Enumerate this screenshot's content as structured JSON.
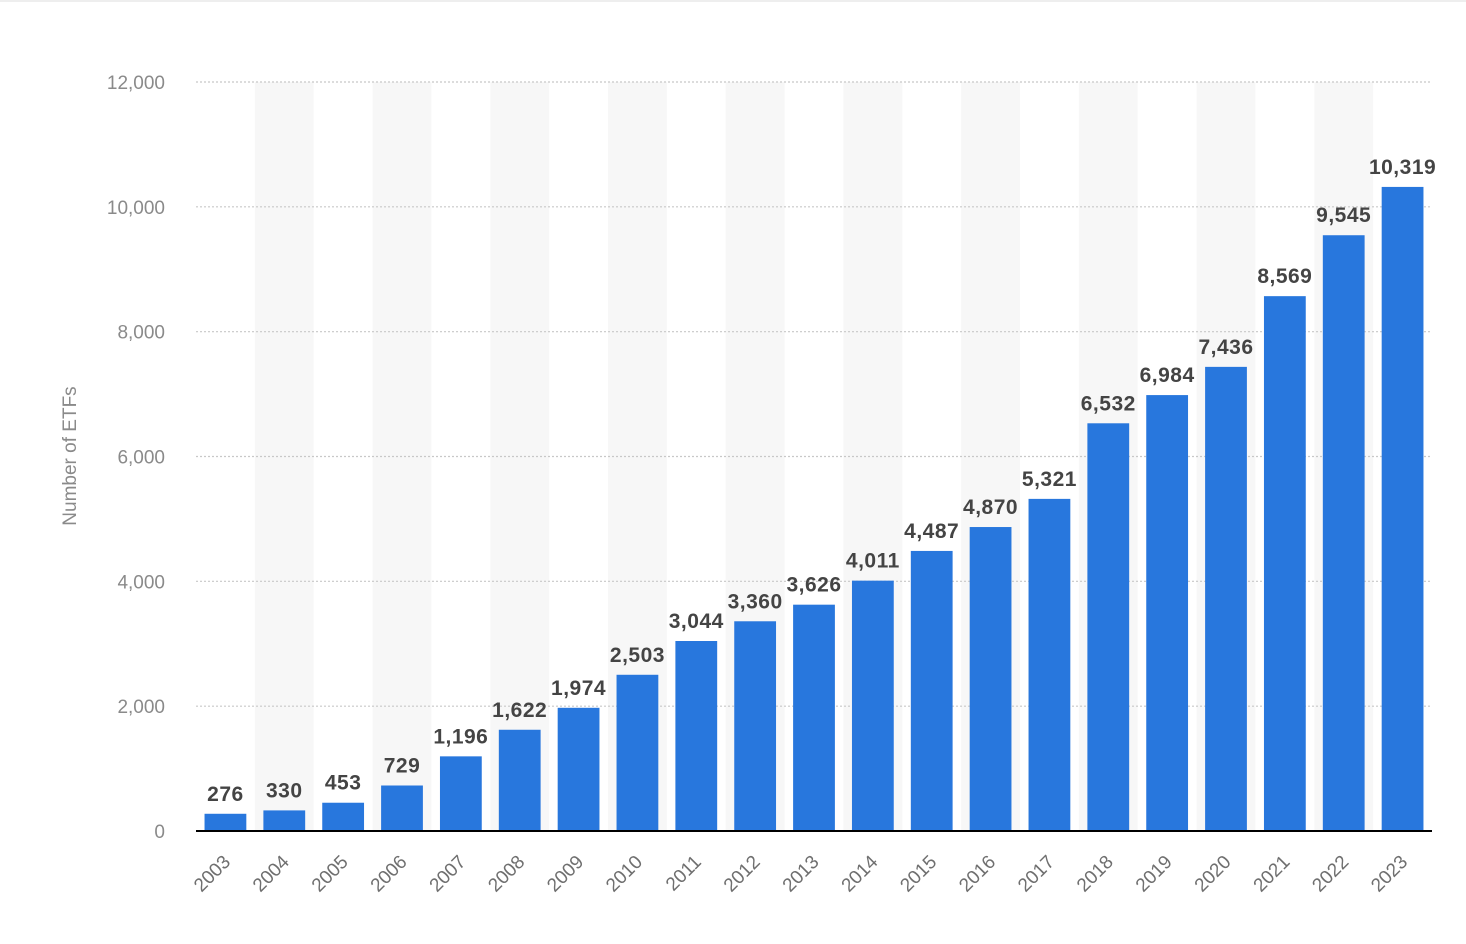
{
  "chart_data": {
    "type": "bar",
    "title": "",
    "xlabel": "",
    "ylabel": "Number of ETFs",
    "categories": [
      "2003",
      "2004",
      "2005",
      "2006",
      "2007",
      "2008",
      "2009",
      "2010",
      "2011",
      "2012",
      "2013",
      "2014",
      "2015",
      "2016",
      "2017",
      "2018",
      "2019",
      "2020",
      "2021",
      "2022",
      "2023"
    ],
    "values": [
      276,
      330,
      453,
      729,
      1196,
      1622,
      1974,
      2503,
      3044,
      3360,
      3626,
      4011,
      4487,
      4870,
      5321,
      6532,
      6984,
      7436,
      8569,
      9545,
      10319
    ],
    "value_labels": [
      "276",
      "330",
      "453",
      "729",
      "1,196",
      "1,622",
      "1,974",
      "2,503",
      "3,044",
      "3,360",
      "3,626",
      "4,011",
      "4,487",
      "4,870",
      "5,321",
      "6,532",
      "6,984",
      "7,436",
      "8,569",
      "9,545",
      "10,319"
    ],
    "yticks": [
      0,
      2000,
      4000,
      6000,
      8000,
      10000,
      12000
    ],
    "ytick_labels": [
      "0",
      "2,000",
      "4,000",
      "6,000",
      "8,000",
      "10,000",
      "12,000"
    ],
    "ylim": [
      0,
      12000
    ],
    "grid": true,
    "legend": "none",
    "colors": {
      "bar": "#2877dd",
      "band": "#f7f7f7",
      "grid": "#c8c8c8",
      "axis": "#000000"
    }
  }
}
